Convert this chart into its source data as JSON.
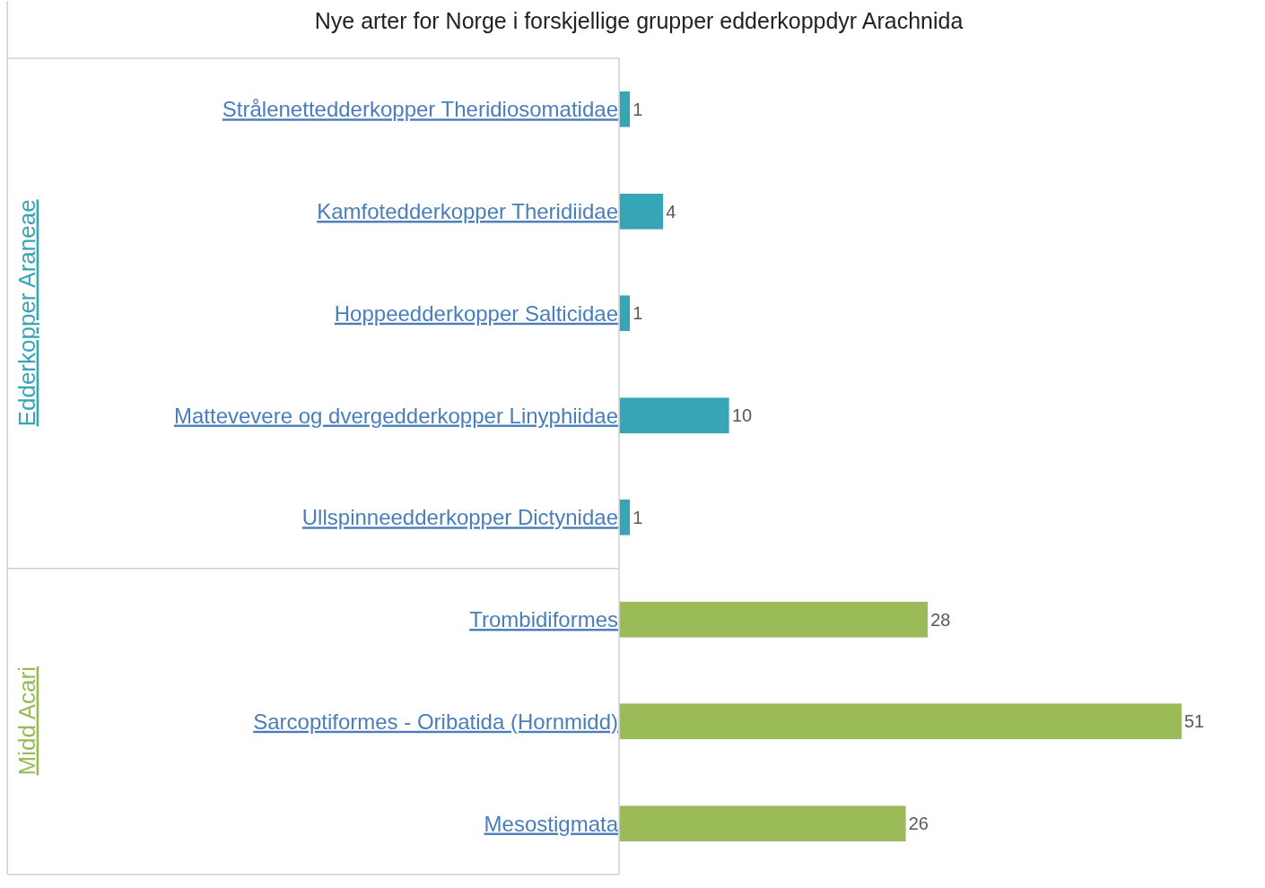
{
  "chart_data": {
    "type": "bar",
    "orientation": "horizontal",
    "title": "Nye arter for Norge i forskjellige grupper edderkoppdyr Arachnida",
    "categories": [
      "Strålenettedderkopper Theridiosomatidae",
      "Kamfotedderkopper Theridiidae",
      "Hoppeedderkopper Salticidae",
      "Mattevevere og dvergedderkopper Linyphiidae",
      "Ullspinneedderkopper Dictynidae",
      "Trombidiformes",
      "Sarcoptiformes - Oribatida (Hornmidd)",
      "Mesostigmata"
    ],
    "series": [
      {
        "name": "Edderkopper Araneae",
        "color": "#36a5b5",
        "values": [
          1,
          4,
          1,
          10,
          1,
          null,
          null,
          null
        ]
      },
      {
        "name": "Midd Acari",
        "color": "#9bbb59",
        "values": [
          null,
          null,
          null,
          null,
          null,
          28,
          51,
          26
        ]
      }
    ],
    "data_labels": true,
    "stacked": true,
    "legend": false
  }
}
